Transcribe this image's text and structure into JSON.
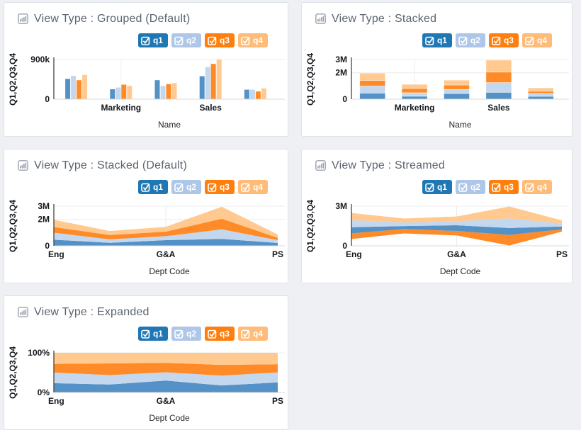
{
  "page": {
    "background": "#eef0f3"
  },
  "chart_colors": {
    "chip": [
      "#1f77b4",
      "#aec7e8",
      "#ff7f0e",
      "#ffbb78"
    ],
    "fill": [
      "#5391c6",
      "#c3d7ee",
      "#ff8b28",
      "#ffc98f"
    ],
    "axis_line": "#444444",
    "baseline": "#d9d9d9",
    "gridline": "#ececec"
  },
  "legend": {
    "items": [
      {
        "label": "q1",
        "checked": true
      },
      {
        "label": "q2",
        "checked": true
      },
      {
        "label": "q3",
        "checked": true
      },
      {
        "label": "q4",
        "checked": true
      }
    ]
  },
  "panels": [
    {
      "title": "View Type : Grouped (Default)"
    },
    {
      "title": "View Type : Stacked"
    },
    {
      "title": "View Type : Stacked (Default)"
    },
    {
      "title": "View Type : Streamed"
    },
    {
      "title": "View Type : Expanded"
    }
  ],
  "chart_data": [
    {
      "type": "grouped-bar",
      "title": "View Type : Grouped (Default)",
      "categories": [
        "Eng",
        "Marketing",
        "G&A",
        "Sales",
        "PS"
      ],
      "series": [
        {
          "name": "q1",
          "values": [
            460000,
            225000,
            430000,
            520000,
            215000
          ]
        },
        {
          "name": "q2",
          "values": [
            530000,
            265000,
            300000,
            730000,
            215000
          ]
        },
        {
          "name": "q3",
          "values": [
            430000,
            330000,
            340000,
            800000,
            175000
          ]
        },
        {
          "name": "q4",
          "values": [
            550000,
            300000,
            365000,
            900000,
            245000
          ]
        }
      ],
      "ymax": 900000,
      "ylim": [
        0,
        900000
      ],
      "yticks": [
        {
          "v": 900000,
          "label": "900k"
        },
        {
          "v": 0,
          "label": "0"
        }
      ],
      "xticks": [
        {
          "i": 1,
          "label": "Marketing"
        },
        {
          "i": 3,
          "label": "Sales"
        }
      ],
      "xlabel": "Name",
      "ylabel": "Q1,Q2,Q3,Q4",
      "legend_position": "top-right"
    },
    {
      "type": "stacked-bar",
      "title": "View Type : Stacked",
      "categories": [
        "Eng",
        "Marketing",
        "G&A",
        "Sales",
        "PS"
      ],
      "series": [
        {
          "name": "q1",
          "values": [
            460000,
            225000,
            430000,
            520000,
            215000
          ]
        },
        {
          "name": "q2",
          "values": [
            530000,
            265000,
            300000,
            730000,
            215000
          ]
        },
        {
          "name": "q3",
          "values": [
            430000,
            330000,
            340000,
            800000,
            175000
          ]
        },
        {
          "name": "q4",
          "values": [
            550000,
            300000,
            365000,
            900000,
            245000
          ]
        }
      ],
      "ymax": 3000000,
      "ylim": [
        0,
        3000000
      ],
      "yticks": [
        {
          "v": 3000000,
          "label": "3M"
        },
        {
          "v": 2000000,
          "label": "2M"
        },
        {
          "v": 0,
          "label": "0"
        }
      ],
      "xticks": [
        {
          "i": 1,
          "label": "Marketing"
        },
        {
          "i": 3,
          "label": "Sales"
        }
      ],
      "xlabel": "Name",
      "ylabel": "Q1,Q2,Q3,Q4",
      "legend_position": "top-right"
    },
    {
      "type": "stacked-area",
      "title": "View Type : Stacked (Default)",
      "categories": [
        "Eng",
        "Marketing",
        "G&A",
        "Sales",
        "PS"
      ],
      "series": [
        {
          "name": "q1",
          "values": [
            460000,
            225000,
            430000,
            520000,
            215000
          ]
        },
        {
          "name": "q2",
          "values": [
            530000,
            265000,
            300000,
            730000,
            215000
          ]
        },
        {
          "name": "q3",
          "values": [
            430000,
            330000,
            340000,
            800000,
            175000
          ]
        },
        {
          "name": "q4",
          "values": [
            550000,
            300000,
            365000,
            900000,
            245000
          ]
        }
      ],
      "ymax": 3000000,
      "ylim": [
        0,
        3000000
      ],
      "yticks": [
        {
          "v": 3000000,
          "label": "3M"
        },
        {
          "v": 2000000,
          "label": "2M"
        },
        {
          "v": 0,
          "label": "0"
        }
      ],
      "xticks": [
        {
          "i": 0,
          "label": "Eng",
          "anchor": "start"
        },
        {
          "i": 2,
          "label": "G&A"
        },
        {
          "i": 4,
          "label": "PS",
          "anchor": "end"
        }
      ],
      "xlabel": "Dept Code",
      "ylabel": "Q1,Q2,Q3,Q4",
      "legend_position": "top-right"
    },
    {
      "type": "stream",
      "title": "View Type : Streamed",
      "categories": [
        "Eng",
        "Marketing",
        "G&A",
        "Sales",
        "PS"
      ],
      "series": [
        {
          "name": "q1",
          "values": [
            460000,
            225000,
            430000,
            520000,
            215000
          ]
        },
        {
          "name": "q2",
          "values": [
            530000,
            265000,
            300000,
            730000,
            215000
          ]
        },
        {
          "name": "q3",
          "values": [
            430000,
            330000,
            340000,
            800000,
            175000
          ]
        },
        {
          "name": "q4",
          "values": [
            550000,
            300000,
            365000,
            900000,
            245000
          ]
        }
      ],
      "order": [
        2,
        0,
        1,
        3
      ],
      "ymax": 3000000,
      "ylim": [
        0,
        3000000
      ],
      "yticks": [
        {
          "v": 3000000,
          "label": "3M"
        },
        {
          "v": 0,
          "label": "0"
        }
      ],
      "xticks": [
        {
          "i": 0,
          "label": "Eng",
          "anchor": "start"
        },
        {
          "i": 2,
          "label": "G&A"
        },
        {
          "i": 4,
          "label": "PS",
          "anchor": "end"
        }
      ],
      "xlabel": "Dept Code",
      "ylabel": "Q1,Q2,Q3,Q4",
      "legend_position": "top-right"
    },
    {
      "type": "expanded-area",
      "title": "View Type : Expanded",
      "categories": [
        "Eng",
        "Marketing",
        "G&A",
        "Sales",
        "PS"
      ],
      "series": [
        {
          "name": "q1",
          "values": [
            460000,
            225000,
            430000,
            520000,
            215000
          ]
        },
        {
          "name": "q2",
          "values": [
            530000,
            265000,
            300000,
            730000,
            215000
          ]
        },
        {
          "name": "q3",
          "values": [
            430000,
            330000,
            340000,
            800000,
            175000
          ]
        },
        {
          "name": "q4",
          "values": [
            550000,
            300000,
            365000,
            900000,
            245000
          ]
        }
      ],
      "ymax": 100,
      "ylim": [
        0,
        100
      ],
      "yticks": [
        {
          "v": 100,
          "label": "100%"
        },
        {
          "v": 0,
          "label": "0%"
        }
      ],
      "xticks": [
        {
          "i": 0,
          "label": "Eng",
          "anchor": "start"
        },
        {
          "i": 2,
          "label": "G&A"
        },
        {
          "i": 4,
          "label": "PS",
          "anchor": "end"
        }
      ],
      "xlabel": "Dept Code",
      "ylabel": "Q1,Q2,Q3,Q4",
      "legend_position": "top-right"
    }
  ]
}
